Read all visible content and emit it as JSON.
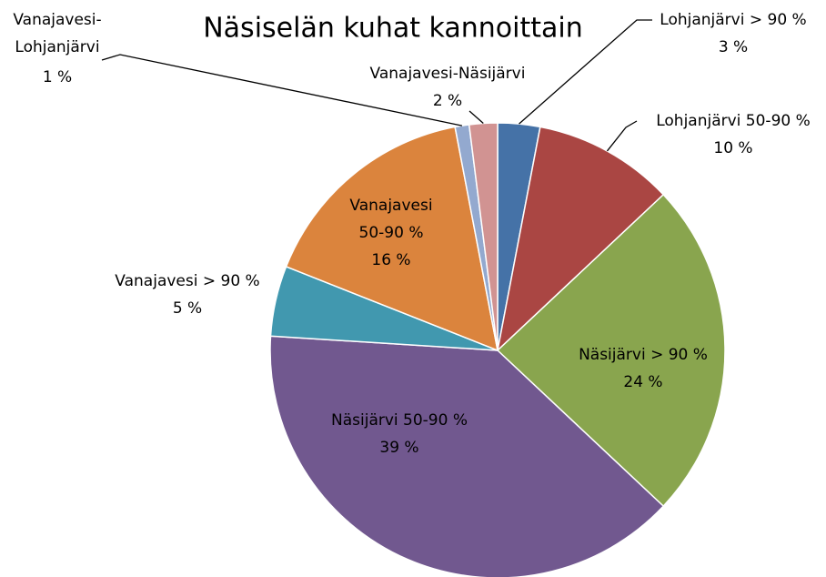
{
  "chart_data": {
    "type": "pie",
    "title": "Näsiselän kuhat kannoittain",
    "categories": [
      "Lohjanjärvi > 90 %",
      "Lohjanjärvi 50-90 %",
      "Näsijärvi > 90 %",
      "Näsijärvi 50-90 %",
      "Vanajavesi > 90 %",
      "Vanajavesi 50-90 %",
      "Vanajavesi-Lohjanjärvi",
      "Vanajavesi-Näsijärvi"
    ],
    "values": [
      3,
      10,
      24,
      39,
      5,
      16,
      1,
      2
    ],
    "value_labels": [
      "3 %",
      "10 %",
      "24 %",
      "39 %",
      "5 %",
      "16 %",
      "1 %",
      "2 %"
    ],
    "colors": [
      "#4572a7",
      "#aa4643",
      "#89a54e",
      "#71588f",
      "#4198af",
      "#db843d",
      "#93a9cf",
      "#d19392"
    ]
  }
}
